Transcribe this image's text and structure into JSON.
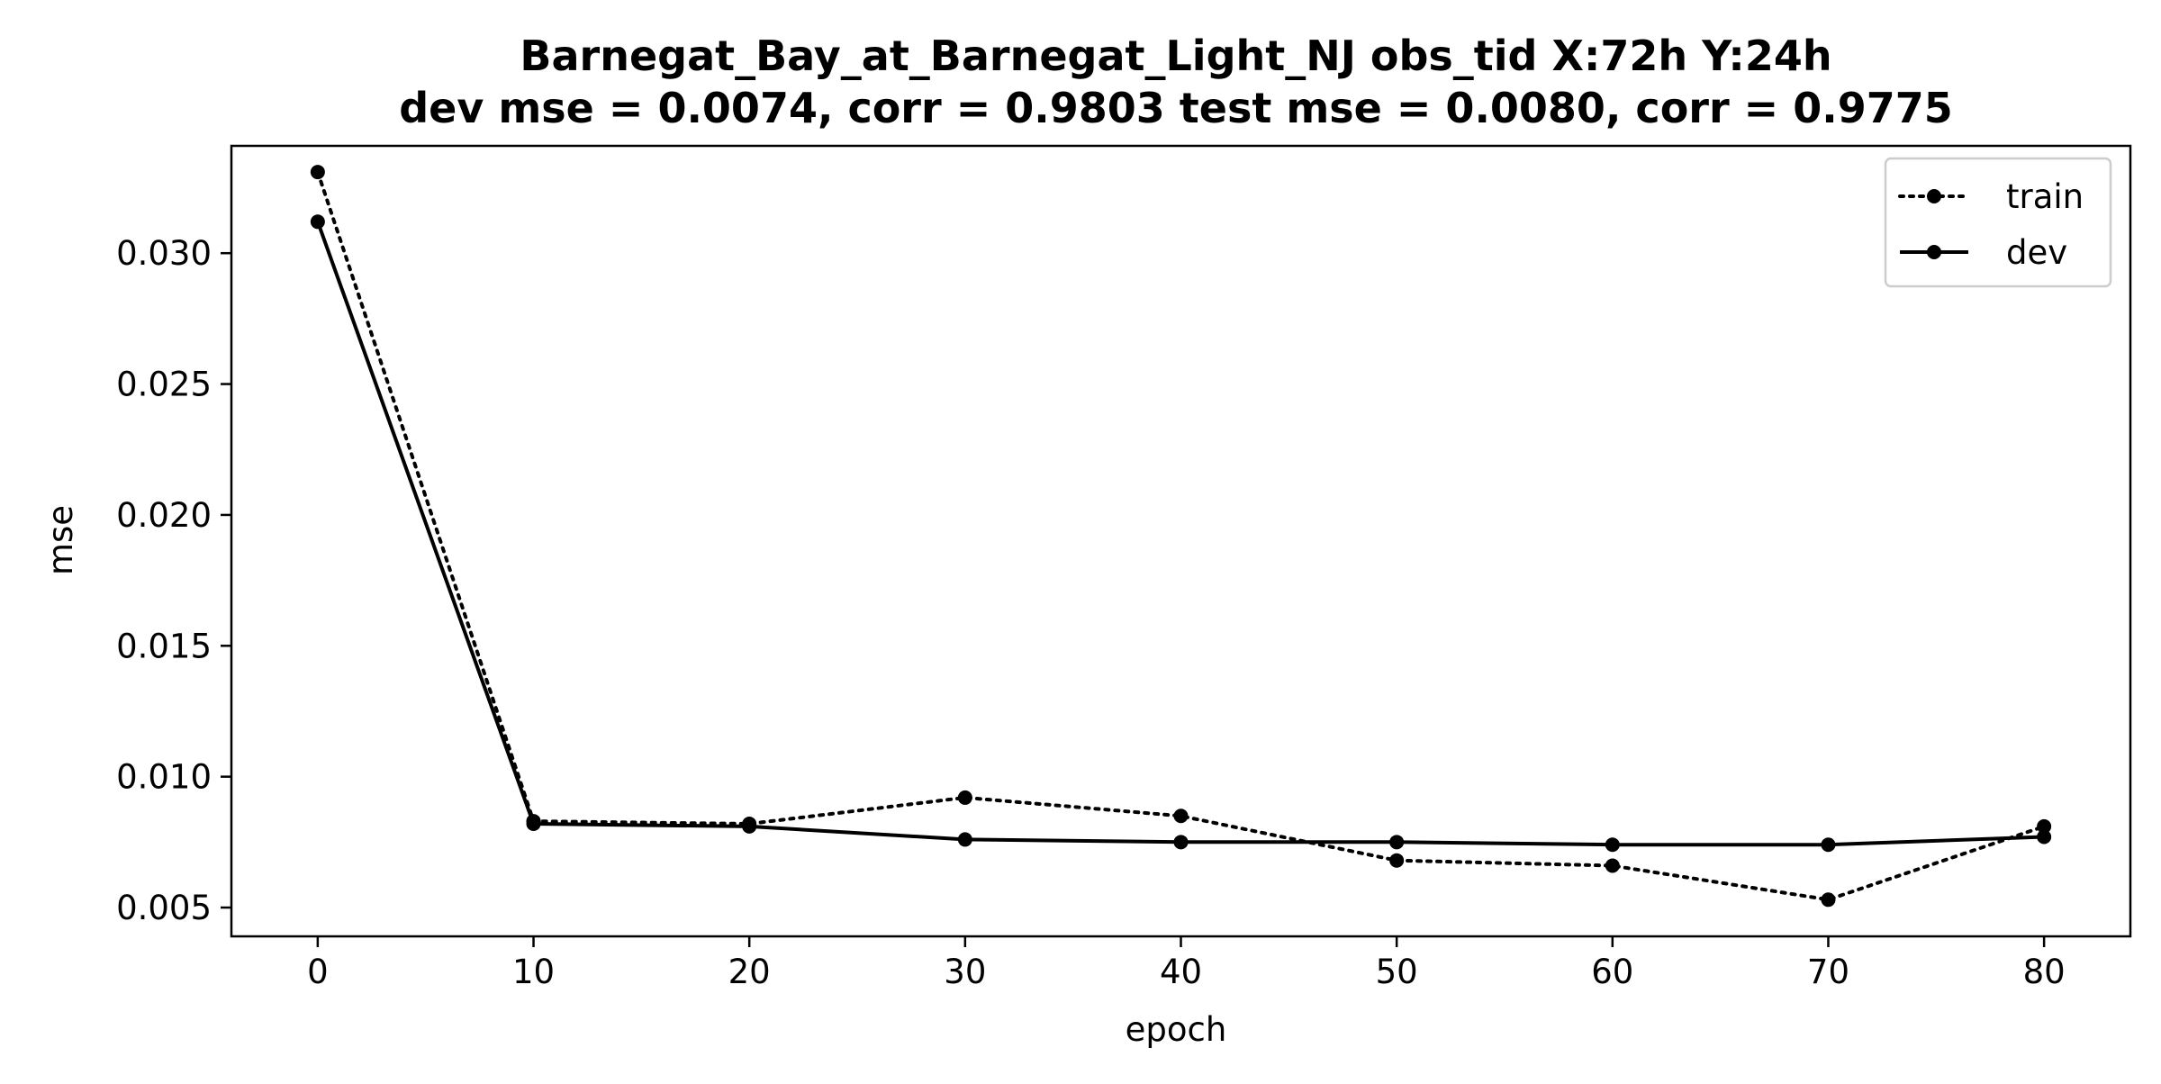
{
  "chart_data": {
    "type": "line",
    "title_lines": [
      "Barnegat_Bay_at_Barnegat_Light_NJ   obs_tid   X:72h   Y:24h",
      "dev mse = 0.0074, corr = 0.9803   test mse = 0.0080, corr = 0.9775"
    ],
    "xlabel": "epoch",
    "ylabel": "mse",
    "xlim": [
      -4,
      84
    ],
    "ylim": [
      0.0039,
      0.0341
    ],
    "x_ticks": [
      0,
      10,
      20,
      30,
      40,
      50,
      60,
      70,
      80
    ],
    "x_tick_labels": [
      "0",
      "10",
      "20",
      "30",
      "40",
      "50",
      "60",
      "70",
      "80"
    ],
    "y_ticks": [
      0.005,
      0.01,
      0.015,
      0.02,
      0.025,
      0.03
    ],
    "y_tick_labels": [
      "0.005",
      "0.010",
      "0.015",
      "0.020",
      "0.025",
      "0.030"
    ],
    "grid": false,
    "legend_position": "upper right",
    "x": [
      0,
      10,
      20,
      30,
      40,
      50,
      60,
      70,
      80
    ],
    "series": [
      {
        "name": "train",
        "line_style": "dotted",
        "marker": "circle",
        "color": "#000000",
        "values": [
          0.0331,
          0.0083,
          0.0082,
          0.0092,
          0.0085,
          0.0068,
          0.0066,
          0.0053,
          0.0081
        ]
      },
      {
        "name": "dev",
        "line_style": "solid",
        "marker": "circle",
        "color": "#000000",
        "values": [
          0.0312,
          0.0082,
          0.0081,
          0.0076,
          0.0075,
          0.0075,
          0.0074,
          0.0074,
          0.0077
        ]
      }
    ]
  }
}
